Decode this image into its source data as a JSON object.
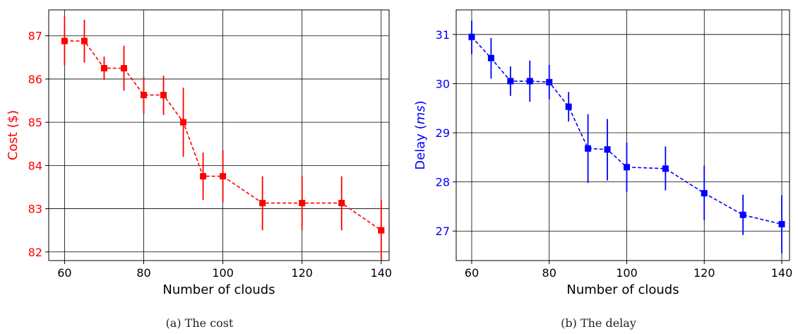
{
  "chart_data": [
    {
      "type": "line",
      "style": "dashed line with square markers and vertical error bars",
      "color": "#ff0000",
      "xlabel": "Number of clouds",
      "ylabel": "Cost ($)",
      "xlim": [
        56,
        142
      ],
      "ylim": [
        81.8,
        87.6
      ],
      "xticks": [
        60,
        80,
        100,
        120,
        140
      ],
      "yticks": [
        82,
        83,
        84,
        85,
        86,
        87
      ],
      "grid": true,
      "caption": "(a)  The cost",
      "x": [
        60,
        65,
        70,
        75,
        80,
        85,
        90,
        95,
        100,
        110,
        120,
        130,
        140
      ],
      "y": [
        86.88,
        86.88,
        86.25,
        86.25,
        85.63,
        85.63,
        85.0,
        83.75,
        83.75,
        83.13,
        83.13,
        83.13,
        82.5
      ],
      "err_low": [
        86.32,
        86.38,
        85.98,
        85.73,
        85.2,
        85.17,
        84.2,
        83.2,
        83.15,
        82.5,
        82.5,
        82.5,
        81.82
      ],
      "err_high": [
        87.45,
        87.37,
        86.52,
        86.77,
        86.05,
        86.08,
        85.8,
        84.3,
        84.35,
        83.75,
        83.75,
        83.75,
        83.2
      ]
    },
    {
      "type": "line",
      "style": "dashed line with square markers and vertical error bars",
      "color": "#0000ff",
      "xlabel": "Number of clouds",
      "ylabel": "Delay (",
      "ylabel_italic": "ms",
      "ylabel_end": ")",
      "xlim": [
        56,
        142
      ],
      "ylim": [
        26.4,
        31.5
      ],
      "xticks": [
        60,
        80,
        100,
        120,
        140
      ],
      "yticks": [
        27,
        28,
        29,
        30,
        31
      ],
      "grid": true,
      "caption": "(b)  The delay",
      "x": [
        60,
        65,
        70,
        75,
        80,
        85,
        90,
        95,
        100,
        110,
        120,
        130,
        140
      ],
      "y": [
        30.95,
        30.52,
        30.05,
        30.05,
        30.03,
        29.53,
        28.68,
        28.66,
        28.3,
        28.27,
        27.77,
        27.33,
        27.14
      ],
      "err_low": [
        30.6,
        30.1,
        29.75,
        29.63,
        29.68,
        29.23,
        27.98,
        28.03,
        27.8,
        27.83,
        27.22,
        26.92,
        26.55
      ],
      "err_high": [
        31.28,
        30.93,
        30.35,
        30.47,
        30.38,
        29.83,
        29.38,
        29.28,
        28.8,
        28.72,
        28.33,
        27.74,
        27.73
      ]
    }
  ]
}
